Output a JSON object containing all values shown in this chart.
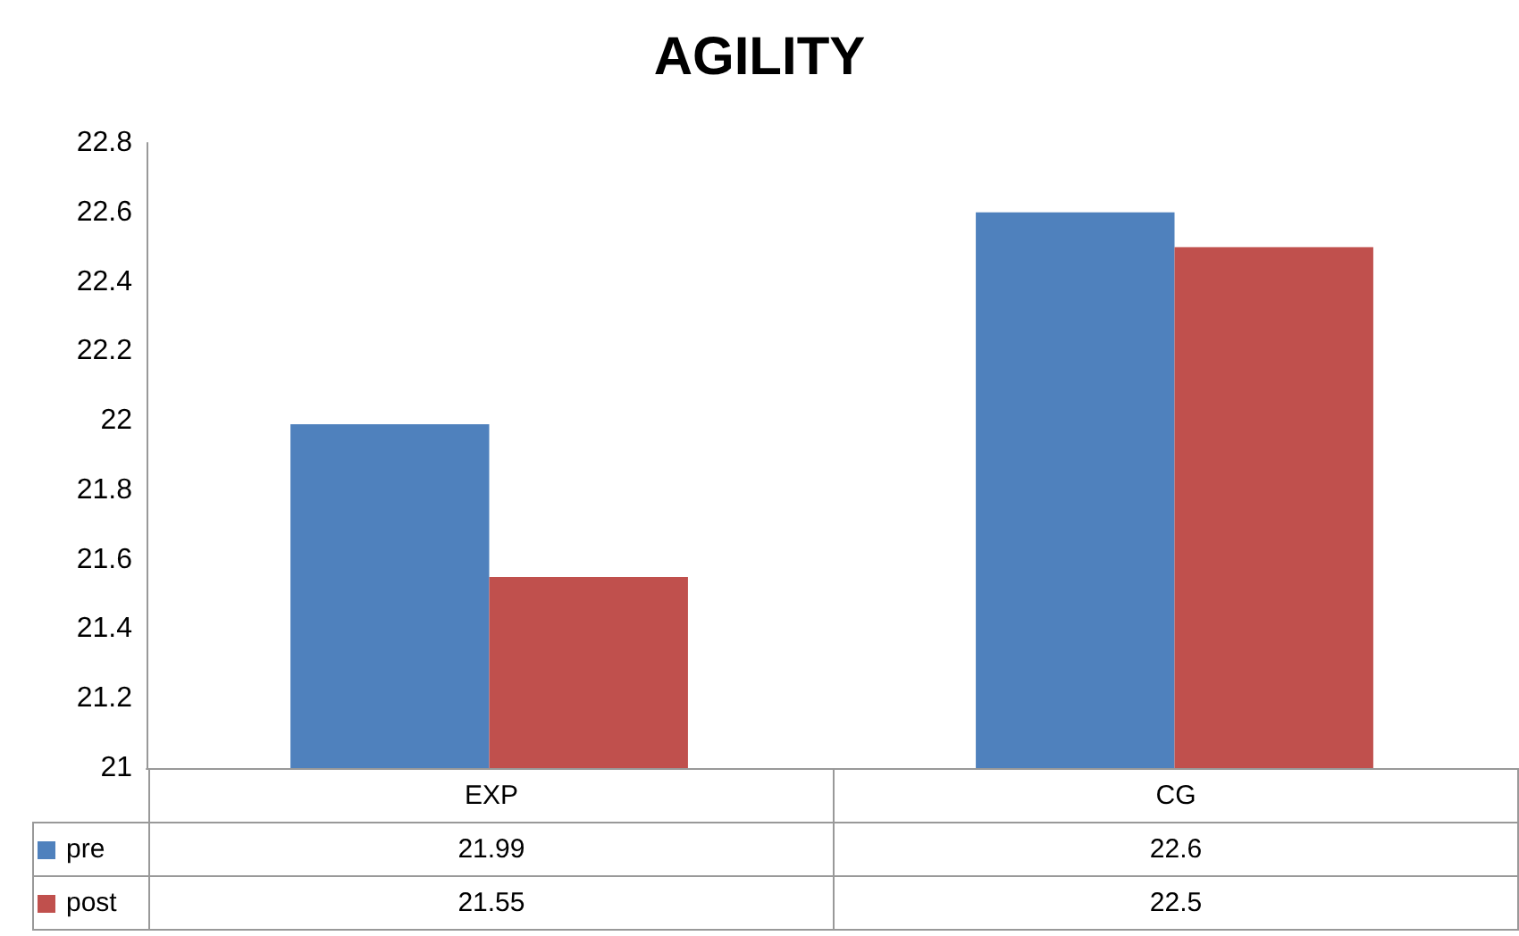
{
  "chart_data": {
    "type": "bar",
    "title": "AGILITY",
    "categories": [
      "EXP",
      "CG"
    ],
    "series": [
      {
        "name": "pre",
        "color": "#4f81bd",
        "values": [
          21.99,
          22.6
        ]
      },
      {
        "name": "post",
        "color": "#c0504d",
        "values": [
          21.55,
          22.5
        ]
      }
    ],
    "ylim": [
      21,
      22.8
    ],
    "yticks": [
      21,
      21.2,
      21.4,
      21.6,
      21.8,
      22,
      22.2,
      22.4,
      22.6,
      22.8
    ],
    "grid": false,
    "data_labels": true,
    "legend": "bottom left"
  }
}
